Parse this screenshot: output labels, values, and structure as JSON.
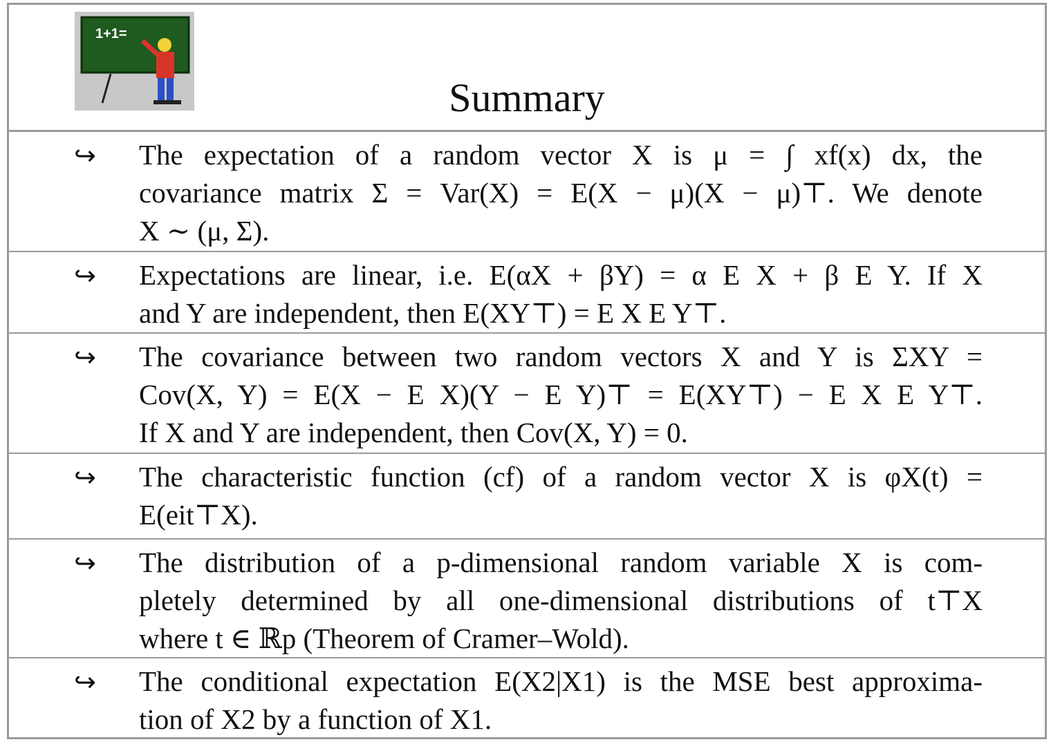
{
  "title": "Summary",
  "logo": {
    "board_text": "1+1=",
    "icon": "teacher-at-blackboard-icon"
  },
  "arrow_glyph": "↪",
  "items": [
    {
      "lines": [
        "The expectation of a random vector X is μ = ∫ xf(x)  dx, the",
        "covariance matrix Σ = Var(X) = E(X − μ)(X − μ)⊤. We denote",
        "X ∼ (μ, Σ)."
      ]
    },
    {
      "lines": [
        "Expectations are linear, i.e. E(αX + βY) = α E X + β E Y. If X",
        "and Y are independent, then E(XY⊤) = E X E Y⊤."
      ]
    },
    {
      "lines": [
        "The covariance between two random vectors X and Y is ΣXY =",
        "Cov(X, Y) = E(X − E X)(Y − E Y)⊤ = E(XY⊤) − E X E Y⊤.",
        "If X and Y are independent, then Cov(X, Y) = 0."
      ]
    },
    {
      "lines": [
        "The characteristic function (cf) of a random vector X is φX(t) =",
        "E(eit⊤X)."
      ]
    },
    {
      "lines": [
        "The distribution of a p-dimensional random variable X is com-",
        "pletely determined by all one-dimensional distributions of t⊤X",
        "where t ∈ ℝp (Theorem of Cramer–Wold)."
      ]
    },
    {
      "lines": [
        "The conditional expectation E(X2|X1) is the MSE best approxima-",
        "tion of X2 by a function of X1."
      ]
    }
  ]
}
